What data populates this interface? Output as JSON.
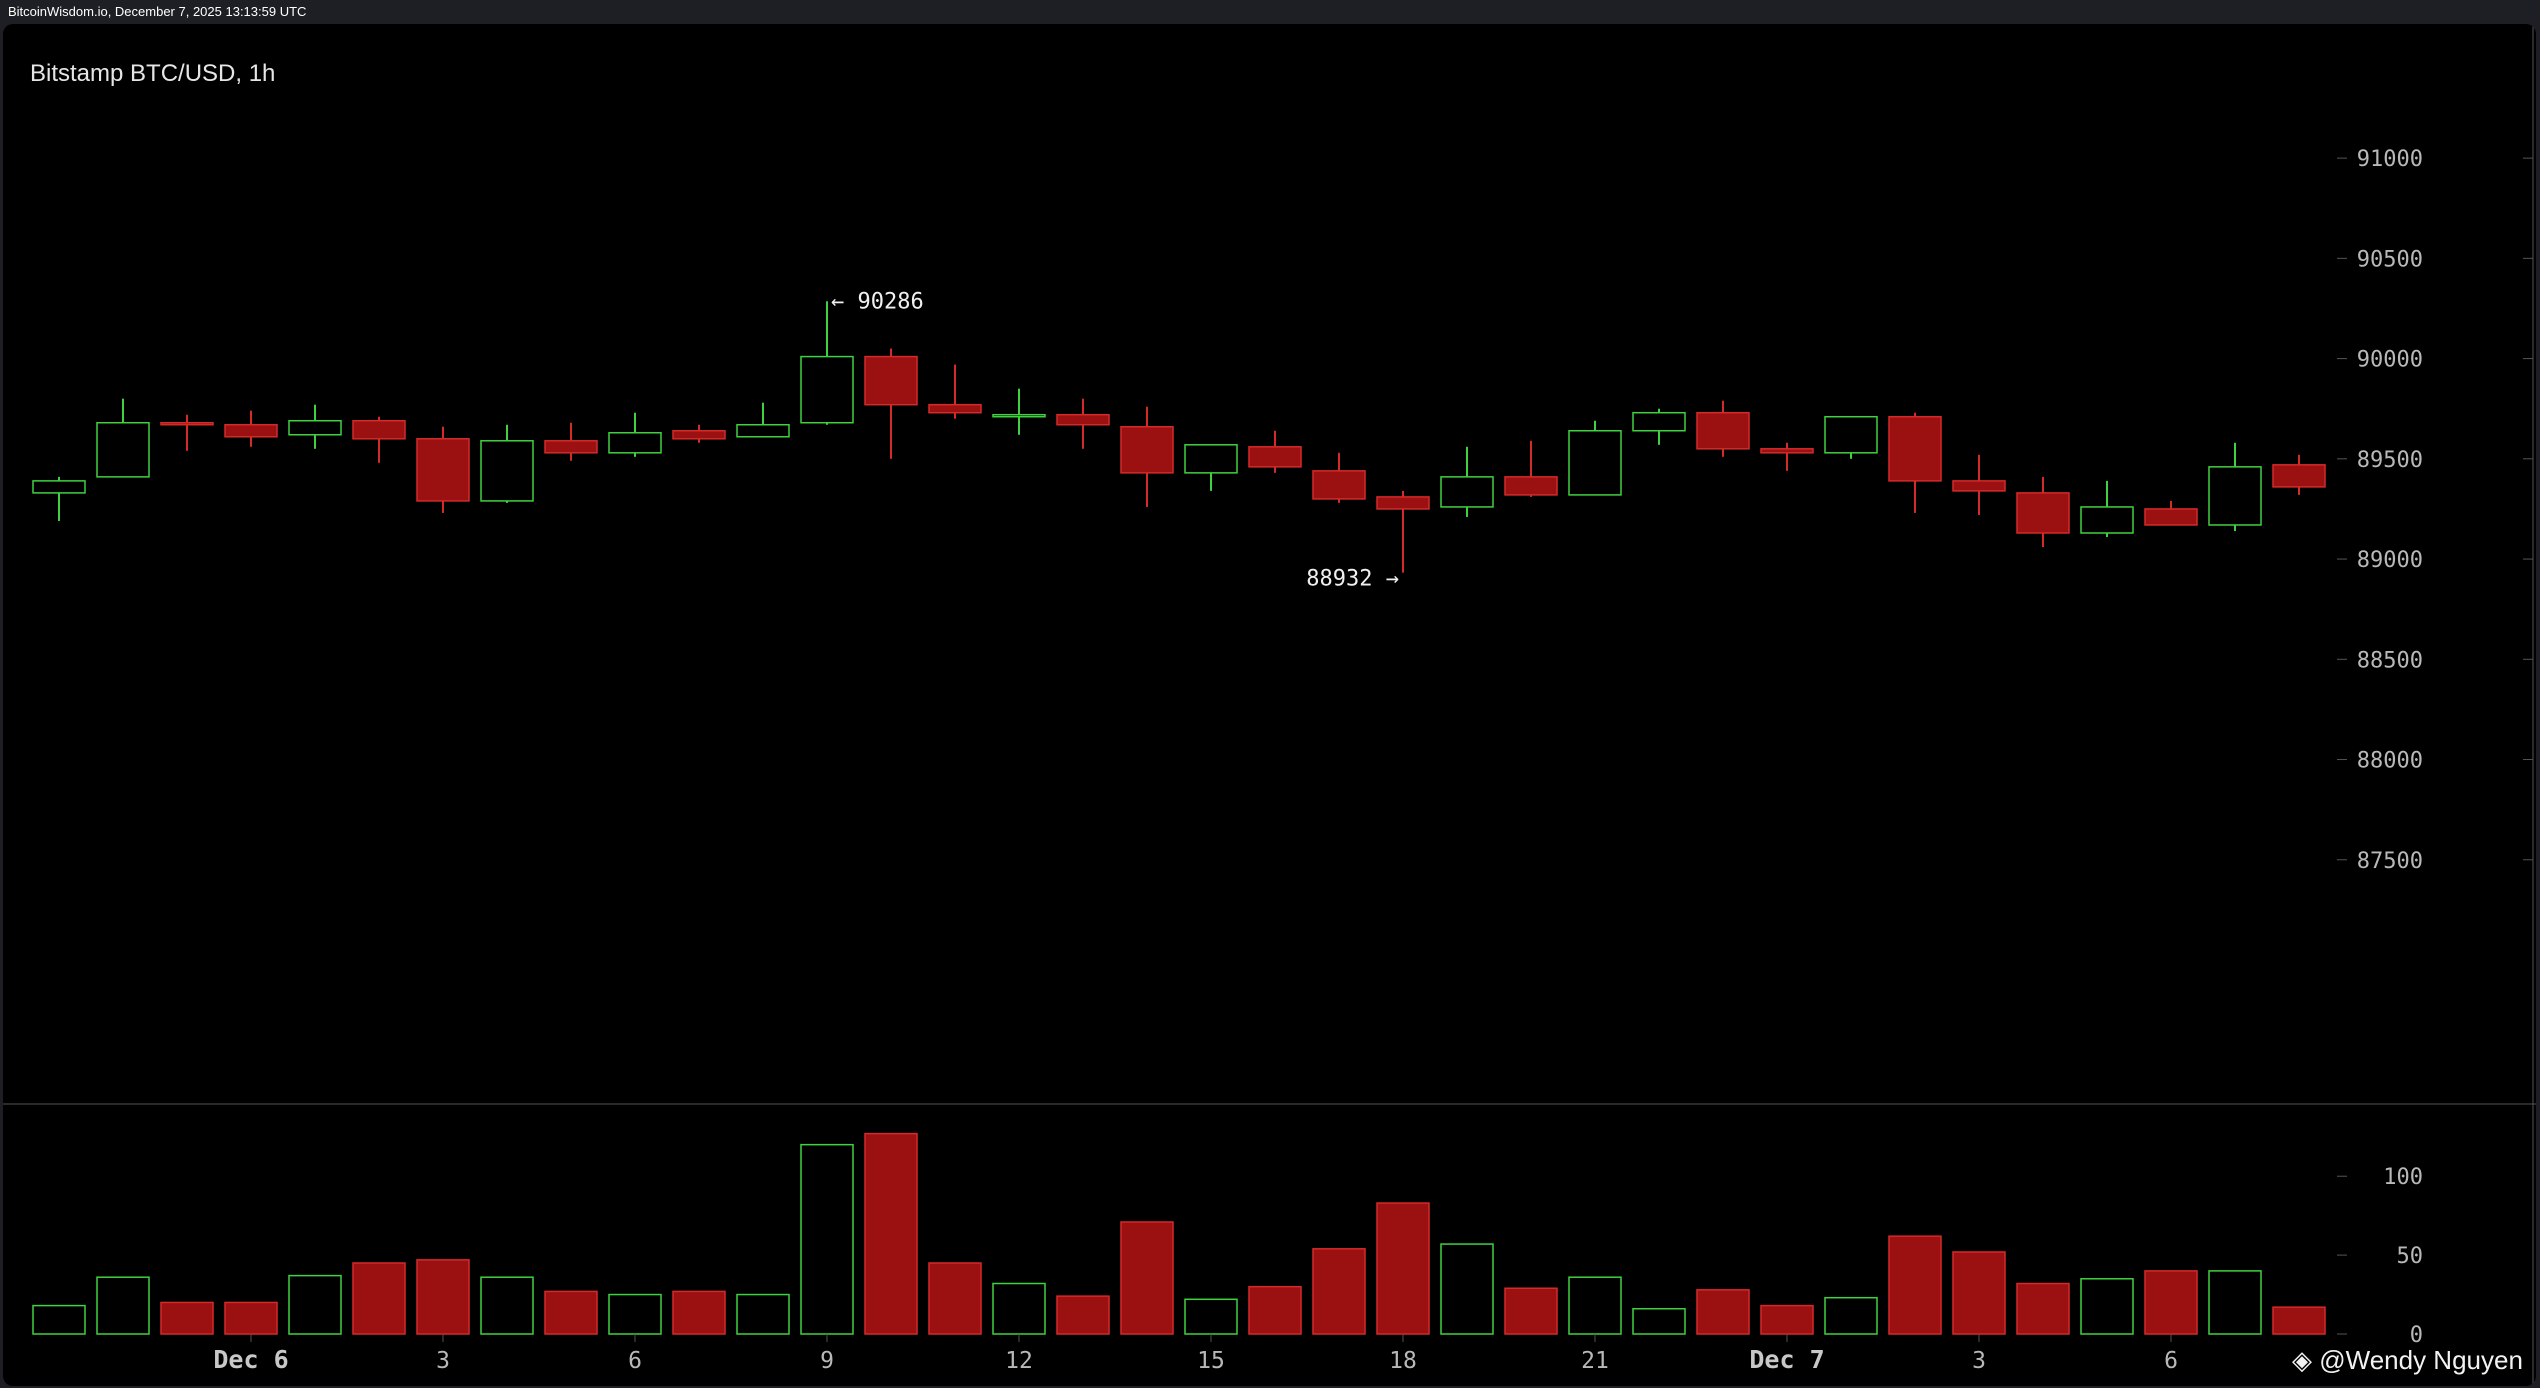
{
  "header": {
    "source_text": "BitcoinWisdom.io, December 7, 2025 13:13:59 UTC"
  },
  "chart_title": "Bitstamp BTC/USD, 1h",
  "watermark": {
    "text": "@Wendy Nguyen"
  },
  "colors": {
    "up": "#3fd13f",
    "down": "#9b1010",
    "down_edge": "#d42a2a",
    "text": "#b8b8b8",
    "background": "#000000"
  },
  "chart_data": {
    "type": "candlestick",
    "interval": "1h",
    "ylim": [
      87000,
      91250
    ],
    "y_ticks": [
      91000,
      90500,
      90000,
      89500,
      89000,
      88500,
      88000,
      87500
    ],
    "volume_ylim": [
      0,
      135
    ],
    "volume_ticks": [
      100,
      50,
      0
    ],
    "x_tick_labels": [
      {
        "index": 3,
        "label": "Dec 6",
        "emphasis": true
      },
      {
        "index": 6,
        "label": "3"
      },
      {
        "index": 9,
        "label": "6"
      },
      {
        "index": 12,
        "label": "9"
      },
      {
        "index": 15,
        "label": "12"
      },
      {
        "index": 18,
        "label": "15"
      },
      {
        "index": 21,
        "label": "18"
      },
      {
        "index": 24,
        "label": "21"
      },
      {
        "index": 27,
        "label": "Dec 7",
        "emphasis": true
      },
      {
        "index": 30,
        "label": "3"
      },
      {
        "index": 33,
        "label": "6"
      }
    ],
    "annotations": [
      {
        "index": 12,
        "value": 90286,
        "label": "← 90286",
        "side": "right"
      },
      {
        "index": 21,
        "value": 88932,
        "label": "88932 →",
        "side": "left"
      }
    ],
    "candles": [
      {
        "o": 89330,
        "h": 89410,
        "l": 89190,
        "c": 89390,
        "v": 18
      },
      {
        "o": 89410,
        "h": 89800,
        "l": 89410,
        "c": 89680,
        "v": 36
      },
      {
        "o": 89680,
        "h": 89720,
        "l": 89540,
        "c": 89670,
        "v": 20
      },
      {
        "o": 89670,
        "h": 89740,
        "l": 89560,
        "c": 89610,
        "v": 20
      },
      {
        "o": 89620,
        "h": 89770,
        "l": 89550,
        "c": 89690,
        "v": 37
      },
      {
        "o": 89690,
        "h": 89710,
        "l": 89480,
        "c": 89600,
        "v": 45
      },
      {
        "o": 89600,
        "h": 89660,
        "l": 89230,
        "c": 89290,
        "v": 47
      },
      {
        "o": 89290,
        "h": 89670,
        "l": 89280,
        "c": 89590,
        "v": 36
      },
      {
        "o": 89590,
        "h": 89680,
        "l": 89490,
        "c": 89530,
        "v": 27
      },
      {
        "o": 89530,
        "h": 89730,
        "l": 89510,
        "c": 89630,
        "v": 25
      },
      {
        "o": 89640,
        "h": 89670,
        "l": 89580,
        "c": 89600,
        "v": 27
      },
      {
        "o": 89610,
        "h": 89780,
        "l": 89610,
        "c": 89670,
        "v": 25
      },
      {
        "o": 89680,
        "h": 90286,
        "l": 89670,
        "c": 90010,
        "v": 120
      },
      {
        "o": 90010,
        "h": 90050,
        "l": 89500,
        "c": 89770,
        "v": 127
      },
      {
        "o": 89770,
        "h": 89970,
        "l": 89700,
        "c": 89730,
        "v": 45
      },
      {
        "o": 89720,
        "h": 89850,
        "l": 89620,
        "c": 89720,
        "v": 32
      },
      {
        "o": 89720,
        "h": 89800,
        "l": 89550,
        "c": 89670,
        "v": 24
      },
      {
        "o": 89660,
        "h": 89760,
        "l": 89260,
        "c": 89430,
        "v": 71
      },
      {
        "o": 89430,
        "h": 89570,
        "l": 89340,
        "c": 89570,
        "v": 22
      },
      {
        "o": 89560,
        "h": 89640,
        "l": 89430,
        "c": 89460,
        "v": 30
      },
      {
        "o": 89440,
        "h": 89530,
        "l": 89280,
        "c": 89300,
        "v": 54
      },
      {
        "o": 89310,
        "h": 89340,
        "l": 88932,
        "c": 89250,
        "v": 83
      },
      {
        "o": 89260,
        "h": 89560,
        "l": 89210,
        "c": 89410,
        "v": 57
      },
      {
        "o": 89410,
        "h": 89590,
        "l": 89310,
        "c": 89320,
        "v": 29
      },
      {
        "o": 89320,
        "h": 89690,
        "l": 89320,
        "c": 89640,
        "v": 36
      },
      {
        "o": 89640,
        "h": 89750,
        "l": 89570,
        "c": 89730,
        "v": 16
      },
      {
        "o": 89730,
        "h": 89790,
        "l": 89510,
        "c": 89550,
        "v": 28
      },
      {
        "o": 89550,
        "h": 89580,
        "l": 89440,
        "c": 89530,
        "v": 18
      },
      {
        "o": 89530,
        "h": 89710,
        "l": 89500,
        "c": 89710,
        "v": 23
      },
      {
        "o": 89710,
        "h": 89730,
        "l": 89230,
        "c": 89390,
        "v": 62
      },
      {
        "o": 89390,
        "h": 89520,
        "l": 89220,
        "c": 89340,
        "v": 52
      },
      {
        "o": 89330,
        "h": 89410,
        "l": 89060,
        "c": 89130,
        "v": 32
      },
      {
        "o": 89130,
        "h": 89390,
        "l": 89110,
        "c": 89260,
        "v": 35
      },
      {
        "o": 89250,
        "h": 89290,
        "l": 89170,
        "c": 89170,
        "v": 40
      },
      {
        "o": 89170,
        "h": 89580,
        "l": 89140,
        "c": 89460,
        "v": 40
      },
      {
        "o": 89470,
        "h": 89520,
        "l": 89320,
        "c": 89360,
        "v": 17
      }
    ]
  }
}
